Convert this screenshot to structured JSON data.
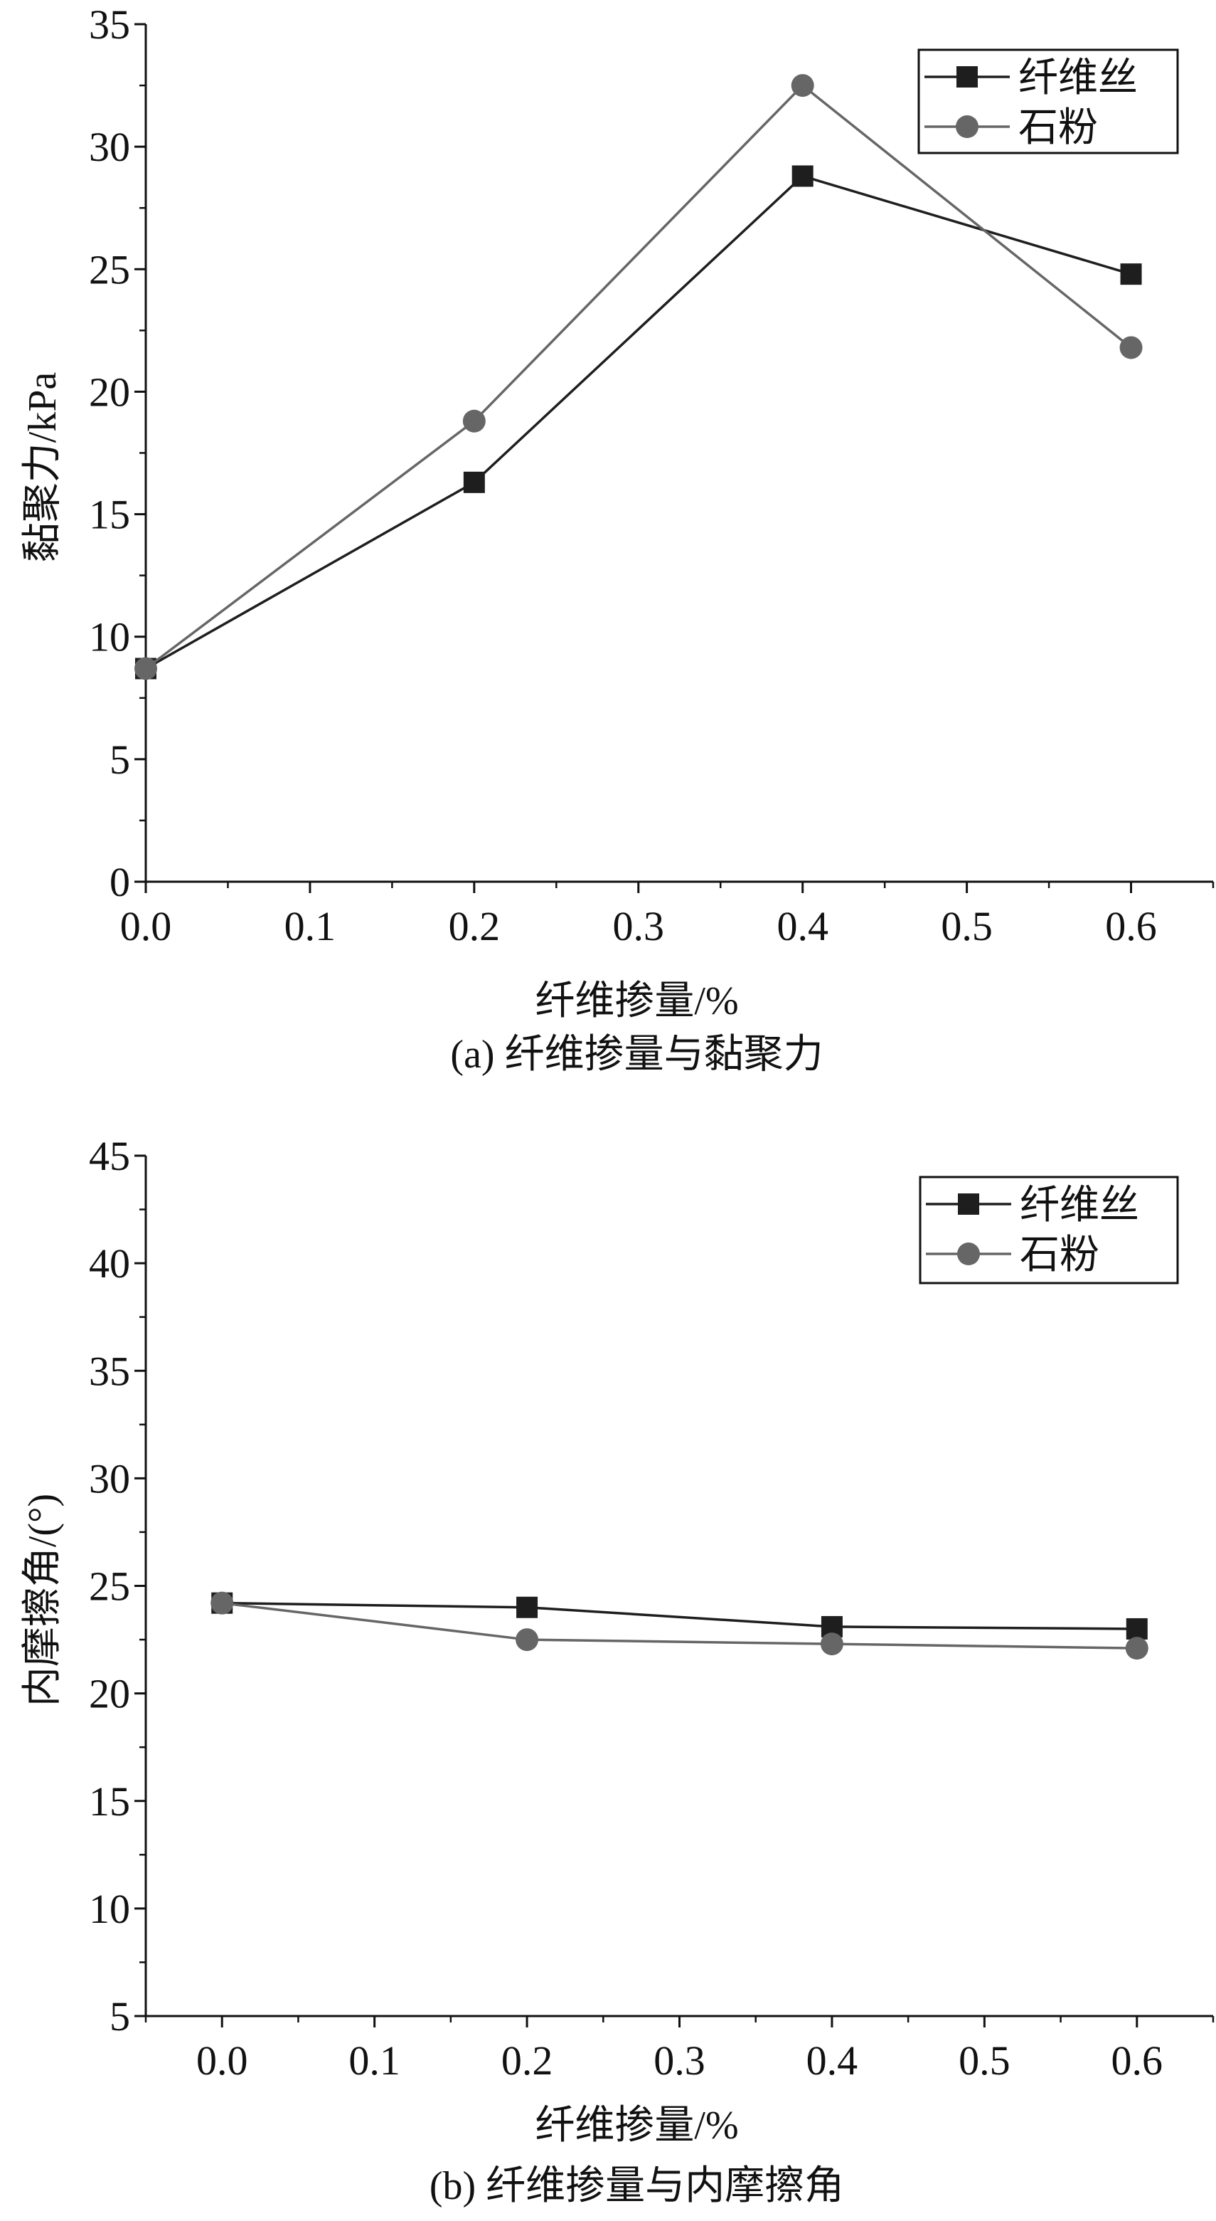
{
  "chart_data": [
    {
      "type": "line",
      "title": "(a) 纤维掺量与黏聚力",
      "xlabel": "纤维掺量/%",
      "ylabel": "黏聚力/kPa",
      "x": [
        0.0,
        0.2,
        0.4,
        0.6
      ],
      "xlim": [
        0,
        0.65
      ],
      "ylim": [
        0,
        35
      ],
      "xticks": [
        "0.0",
        "0.1",
        "0.2",
        "0.3",
        "0.4",
        "0.5",
        "0.6"
      ],
      "yticks": [
        "0",
        "5",
        "10",
        "15",
        "20",
        "25",
        "30",
        "35"
      ],
      "grid": false,
      "legend_position": "top-right",
      "series": [
        {
          "name": "纤维丝",
          "marker": "square",
          "color": "#1e1e1e",
          "values": [
            8.7,
            16.3,
            28.8,
            24.8
          ]
        },
        {
          "name": "石粉",
          "marker": "circle",
          "color": "#666666",
          "values": [
            8.7,
            18.8,
            32.5,
            21.8
          ]
        }
      ]
    },
    {
      "type": "line",
      "title": "(b) 纤维掺量与内摩擦角",
      "xlabel": "纤维掺量/%",
      "ylabel": "内摩擦角/(°)",
      "x": [
        0.0,
        0.2,
        0.4,
        0.6
      ],
      "xlim": [
        -0.05,
        0.65
      ],
      "ylim": [
        5,
        45
      ],
      "xticks": [
        "0.0",
        "0.1",
        "0.2",
        "0.3",
        "0.4",
        "0.5",
        "0.6"
      ],
      "yticks": [
        "5",
        "10",
        "15",
        "20",
        "25",
        "30",
        "35",
        "40",
        "45"
      ],
      "grid": false,
      "legend_position": "top-right",
      "series": [
        {
          "name": "纤维丝",
          "marker": "square",
          "color": "#1e1e1e",
          "values": [
            24.2,
            24.0,
            23.1,
            23.0
          ]
        },
        {
          "name": "石粉",
          "marker": "circle",
          "color": "#666666",
          "values": [
            24.2,
            22.5,
            22.3,
            22.1
          ]
        }
      ]
    }
  ]
}
